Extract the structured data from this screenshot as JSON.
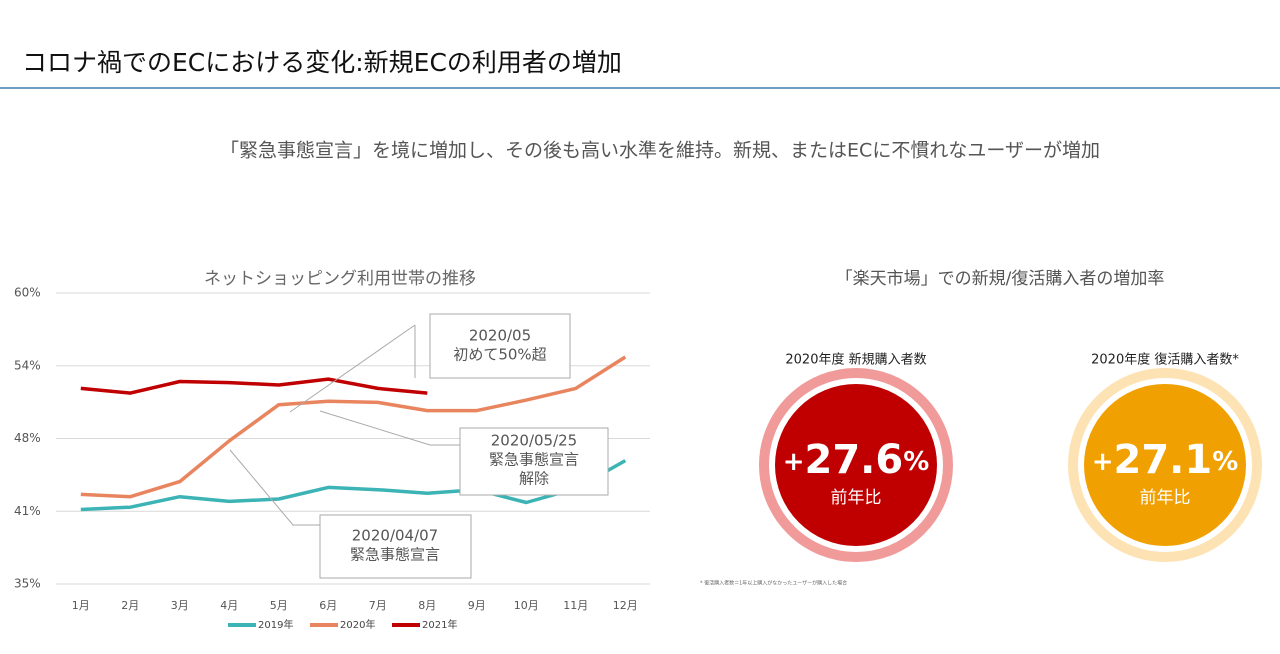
{
  "title": "コロナ禍でのECにおける変化:新規ECの利用者の増加",
  "subtitle": "「緊急事態宣言」を境に増加し、その後も高い水準を維持。新規、またはECに不慣れなユーザーが増加",
  "chart_data": {
    "type": "line",
    "title": "ネットショッピング利用世帯の推移",
    "categories": [
      "1月",
      "2月",
      "3月",
      "4月",
      "5月",
      "6月",
      "7月",
      "8月",
      "9月",
      "10月",
      "11月",
      "12月"
    ],
    "series": [
      {
        "name": "2019年",
        "color": "#3cb3b5",
        "values": [
          41.4,
          41.6,
          42.5,
          42.1,
          42.3,
          43.3,
          43.1,
          42.8,
          43.1,
          42.0,
          43.2,
          45.6
        ]
      },
      {
        "name": "2020年",
        "color": "#e8855f",
        "values": [
          42.7,
          42.5,
          43.8,
          47.3,
          50.4,
          50.7,
          50.6,
          49.9,
          49.9,
          50.8,
          51.8,
          54.5
        ]
      },
      {
        "name": "2021年",
        "color": "#c00000",
        "values": [
          51.8,
          51.4,
          52.4,
          52.3,
          52.1,
          52.6,
          51.8,
          51.4,
          null,
          null,
          null,
          null
        ]
      }
    ],
    "ylim": [
      35,
      60
    ],
    "yticks": [
      {
        "value": 35,
        "label": "35%"
      },
      {
        "value": 41.25,
        "label": "41%"
      },
      {
        "value": 47.5,
        "label": "48%"
      },
      {
        "value": 53.75,
        "label": "54%"
      },
      {
        "value": 60,
        "label": "60%"
      }
    ],
    "grid": true,
    "legend": "bottom",
    "annotations": [
      {
        "lines": [
          "2020/05",
          "初めて50%超"
        ]
      },
      {
        "lines": [
          "2020/05/25",
          "緊急事態宣言",
          "解除"
        ]
      },
      {
        "lines": [
          "2020/04/07",
          "緊急事態宣言"
        ]
      }
    ]
  },
  "growth": {
    "title": "「楽天市場」での新規/復活購入者の増加率",
    "items": [
      {
        "label": "2020年度 新規購入者数",
        "sign": "+",
        "number": "27.6",
        "unit": "%",
        "caption": "前年比"
      },
      {
        "label": "2020年度 復活購入者数*",
        "sign": "+",
        "number": "27.1",
        "unit": "%",
        "caption": "前年比"
      }
    ],
    "footnote": "* 復活購入者数＝1年以上購入がなかったユーザーが購入した場合"
  }
}
